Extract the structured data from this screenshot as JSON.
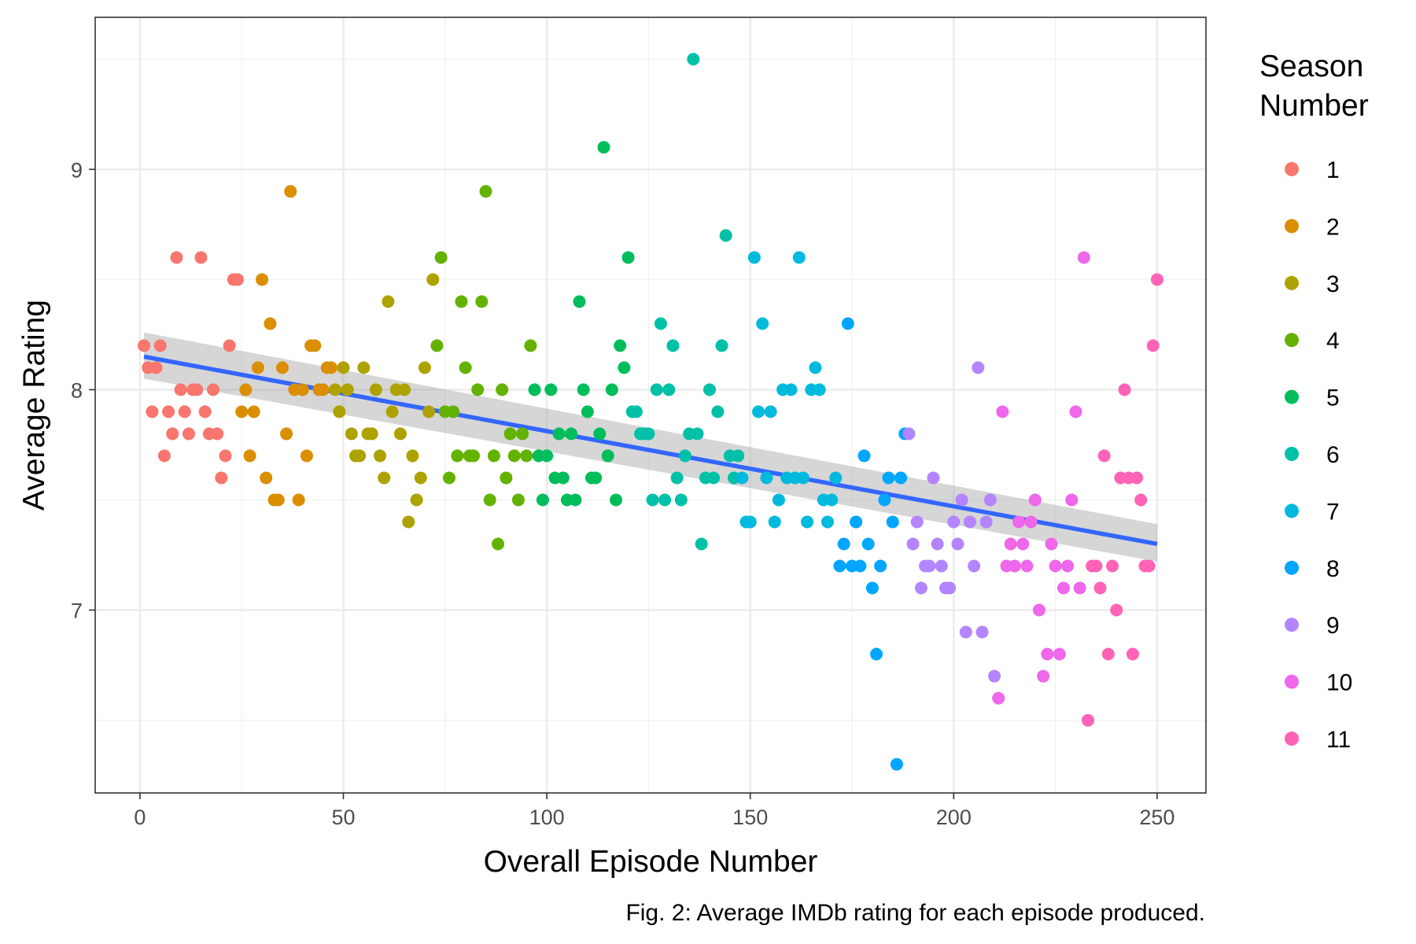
{
  "chart_data": {
    "type": "scatter",
    "xlabel": "Overall Episode Number",
    "ylabel": "Average Rating",
    "caption": "Fig. 2: Average IMDb rating for each episode produced.",
    "legend_title": [
      "Season",
      "Number"
    ],
    "legend_placement": "right",
    "grid": true,
    "xlim": [
      -11,
      262
    ],
    "ylim": [
      6.17,
      9.69
    ],
    "x_ticks": [
      0,
      50,
      100,
      150,
      200,
      250
    ],
    "y_ticks": [
      7,
      8,
      9
    ],
    "trend_line": {
      "color": "#3366ff",
      "x": [
        1,
        250
      ],
      "y": [
        8.15,
        7.3
      ],
      "ci_lower": [
        8.05,
        7.22
      ],
      "ci_upper": [
        8.26,
        7.39
      ]
    },
    "series": [
      {
        "name": "1",
        "color": "#F8766D",
        "points": [
          [
            1,
            8.2
          ],
          [
            2,
            8.1
          ],
          [
            3,
            7.9
          ],
          [
            4,
            8.1
          ],
          [
            5,
            8.2
          ],
          [
            6,
            7.7
          ],
          [
            7,
            7.9
          ],
          [
            8,
            7.8
          ],
          [
            9,
            8.6
          ],
          [
            10,
            8.0
          ],
          [
            11,
            7.9
          ],
          [
            12,
            7.8
          ],
          [
            13,
            8.0
          ],
          [
            14,
            8.0
          ],
          [
            15,
            8.6
          ],
          [
            16,
            7.9
          ],
          [
            17,
            7.8
          ],
          [
            18,
            8.0
          ],
          [
            19,
            7.8
          ],
          [
            20,
            7.6
          ],
          [
            21,
            7.7
          ],
          [
            22,
            8.2
          ],
          [
            23,
            8.5
          ],
          [
            24,
            8.5
          ]
        ]
      },
      {
        "name": "2",
        "color": "#DB8E00",
        "points": [
          [
            25,
            7.9
          ],
          [
            26,
            8.0
          ],
          [
            27,
            7.7
          ],
          [
            28,
            7.9
          ],
          [
            29,
            8.1
          ],
          [
            30,
            8.5
          ],
          [
            31,
            7.6
          ],
          [
            32,
            8.3
          ],
          [
            33,
            7.5
          ],
          [
            34,
            7.5
          ],
          [
            35,
            8.1
          ],
          [
            36,
            7.8
          ],
          [
            37,
            8.9
          ],
          [
            38,
            8.0
          ],
          [
            39,
            7.5
          ],
          [
            40,
            8.0
          ],
          [
            41,
            7.7
          ],
          [
            42,
            8.2
          ],
          [
            43,
            8.2
          ],
          [
            44,
            8.0
          ],
          [
            45,
            8.0
          ],
          [
            46,
            8.1
          ],
          [
            47,
            8.1
          ]
        ]
      },
      {
        "name": "3",
        "color": "#AEA200",
        "points": [
          [
            48,
            8.0
          ],
          [
            49,
            7.9
          ],
          [
            50,
            8.1
          ],
          [
            51,
            8.0
          ],
          [
            52,
            7.8
          ],
          [
            53,
            7.7
          ],
          [
            54,
            7.7
          ],
          [
            55,
            8.1
          ],
          [
            56,
            7.8
          ],
          [
            57,
            7.8
          ],
          [
            58,
            8.0
          ],
          [
            59,
            7.7
          ],
          [
            60,
            7.6
          ],
          [
            61,
            8.4
          ],
          [
            62,
            7.9
          ],
          [
            63,
            8.0
          ],
          [
            64,
            7.8
          ],
          [
            65,
            8.0
          ],
          [
            66,
            7.4
          ],
          [
            67,
            7.7
          ],
          [
            68,
            7.5
          ],
          [
            69,
            7.6
          ],
          [
            70,
            8.1
          ],
          [
            71,
            7.9
          ],
          [
            72,
            8.5
          ]
        ]
      },
      {
        "name": "4",
        "color": "#64B200",
        "points": [
          [
            73,
            8.2
          ],
          [
            74,
            8.6
          ],
          [
            75,
            7.9
          ],
          [
            76,
            7.6
          ],
          [
            77,
            7.9
          ],
          [
            78,
            7.7
          ],
          [
            79,
            8.4
          ],
          [
            80,
            8.1
          ],
          [
            81,
            7.7
          ],
          [
            82,
            7.7
          ],
          [
            83,
            8.0
          ],
          [
            84,
            8.4
          ],
          [
            85,
            8.9
          ],
          [
            86,
            7.5
          ],
          [
            87,
            7.7
          ],
          [
            88,
            7.3
          ],
          [
            89,
            8.0
          ],
          [
            90,
            7.6
          ],
          [
            91,
            7.8
          ],
          [
            92,
            7.7
          ],
          [
            93,
            7.5
          ],
          [
            94,
            7.8
          ],
          [
            95,
            7.7
          ],
          [
            96,
            8.2
          ]
        ]
      },
      {
        "name": "5",
        "color": "#00BD5C",
        "points": [
          [
            97,
            8.0
          ],
          [
            98,
            7.7
          ],
          [
            99,
            7.5
          ],
          [
            100,
            7.7
          ],
          [
            101,
            8.0
          ],
          [
            102,
            7.6
          ],
          [
            103,
            7.8
          ],
          [
            104,
            7.6
          ],
          [
            105,
            7.5
          ],
          [
            106,
            7.8
          ],
          [
            107,
            7.5
          ],
          [
            108,
            8.4
          ],
          [
            109,
            8.0
          ],
          [
            110,
            7.9
          ],
          [
            111,
            7.6
          ],
          [
            112,
            7.6
          ],
          [
            113,
            7.8
          ],
          [
            114,
            9.1
          ],
          [
            115,
            7.7
          ],
          [
            116,
            8.0
          ],
          [
            117,
            7.5
          ],
          [
            118,
            8.2
          ],
          [
            119,
            8.1
          ],
          [
            120,
            8.6
          ]
        ]
      },
      {
        "name": "6",
        "color": "#00C1A7",
        "points": [
          [
            121,
            7.9
          ],
          [
            122,
            7.9
          ],
          [
            123,
            7.8
          ],
          [
            124,
            7.8
          ],
          [
            125,
            7.8
          ],
          [
            126,
            7.5
          ],
          [
            127,
            8.0
          ],
          [
            128,
            8.3
          ],
          [
            129,
            7.5
          ],
          [
            130,
            8.0
          ],
          [
            131,
            8.2
          ],
          [
            132,
            7.6
          ],
          [
            133,
            7.5
          ],
          [
            134,
            7.7
          ],
          [
            135,
            7.8
          ],
          [
            136,
            9.5
          ],
          [
            137,
            7.8
          ],
          [
            138,
            7.3
          ],
          [
            139,
            7.6
          ],
          [
            140,
            8.0
          ],
          [
            141,
            7.6
          ],
          [
            142,
            7.9
          ],
          [
            143,
            8.2
          ],
          [
            144,
            8.7
          ],
          [
            145,
            7.7
          ],
          [
            146,
            7.6
          ],
          [
            147,
            7.7
          ]
        ]
      },
      {
        "name": "7",
        "color": "#00BADE",
        "points": [
          [
            148,
            7.6
          ],
          [
            149,
            7.4
          ],
          [
            150,
            7.4
          ],
          [
            151,
            8.6
          ],
          [
            152,
            7.9
          ],
          [
            153,
            8.3
          ],
          [
            154,
            7.6
          ],
          [
            155,
            7.9
          ],
          [
            156,
            7.4
          ],
          [
            157,
            7.5
          ],
          [
            158,
            8.0
          ],
          [
            159,
            7.6
          ],
          [
            160,
            8.0
          ],
          [
            161,
            7.6
          ],
          [
            162,
            8.6
          ],
          [
            163,
            7.6
          ],
          [
            164,
            7.4
          ],
          [
            165,
            8.0
          ],
          [
            166,
            8.1
          ],
          [
            167,
            8.0
          ],
          [
            168,
            7.5
          ],
          [
            169,
            7.4
          ],
          [
            170,
            7.5
          ],
          [
            171,
            7.6
          ]
        ]
      },
      {
        "name": "8",
        "color": "#00A6FF",
        "points": [
          [
            172,
            7.2
          ],
          [
            173,
            7.3
          ],
          [
            174,
            8.3
          ],
          [
            175,
            7.2
          ],
          [
            176,
            7.4
          ],
          [
            177,
            7.2
          ],
          [
            178,
            7.7
          ],
          [
            179,
            7.3
          ],
          [
            180,
            7.1
          ],
          [
            181,
            6.8
          ],
          [
            182,
            7.2
          ],
          [
            183,
            7.5
          ],
          [
            184,
            7.6
          ],
          [
            185,
            7.4
          ],
          [
            186,
            6.3
          ],
          [
            187,
            7.6
          ],
          [
            188,
            7.8
          ]
        ]
      },
      {
        "name": "9",
        "color": "#B385FF",
        "points": [
          [
            189,
            7.8
          ],
          [
            190,
            7.3
          ],
          [
            191,
            7.4
          ],
          [
            192,
            7.1
          ],
          [
            193,
            7.2
          ],
          [
            194,
            7.2
          ],
          [
            195,
            7.6
          ],
          [
            196,
            7.3
          ],
          [
            197,
            7.2
          ],
          [
            198,
            7.1
          ],
          [
            199,
            7.1
          ],
          [
            200,
            7.4
          ],
          [
            201,
            7.3
          ],
          [
            202,
            7.5
          ],
          [
            203,
            6.9
          ],
          [
            204,
            7.4
          ],
          [
            205,
            7.2
          ],
          [
            206,
            8.1
          ],
          [
            207,
            6.9
          ],
          [
            208,
            7.4
          ],
          [
            209,
            7.5
          ],
          [
            210,
            6.7
          ]
        ]
      },
      {
        "name": "10",
        "color": "#EF67EB",
        "points": [
          [
            211,
            6.6
          ],
          [
            212,
            7.9
          ],
          [
            213,
            7.2
          ],
          [
            214,
            7.3
          ],
          [
            215,
            7.2
          ],
          [
            216,
            7.4
          ],
          [
            217,
            7.3
          ],
          [
            218,
            7.2
          ],
          [
            219,
            7.4
          ],
          [
            220,
            7.5
          ],
          [
            221,
            7.0
          ],
          [
            222,
            6.7
          ],
          [
            223,
            6.8
          ],
          [
            224,
            7.3
          ],
          [
            225,
            7.2
          ],
          [
            226,
            6.8
          ],
          [
            227,
            7.1
          ],
          [
            228,
            7.2
          ],
          [
            229,
            7.5
          ],
          [
            230,
            7.9
          ],
          [
            231,
            7.1
          ],
          [
            232,
            8.6
          ]
        ]
      },
      {
        "name": "11",
        "color": "#FF63B6",
        "points": [
          [
            233,
            6.5
          ],
          [
            234,
            7.2
          ],
          [
            235,
            7.2
          ],
          [
            236,
            7.1
          ],
          [
            237,
            7.7
          ],
          [
            238,
            6.8
          ],
          [
            239,
            7.2
          ],
          [
            240,
            7.0
          ],
          [
            241,
            7.6
          ],
          [
            242,
            8.0
          ],
          [
            243,
            7.6
          ],
          [
            244,
            6.8
          ],
          [
            245,
            7.6
          ],
          [
            246,
            7.5
          ],
          [
            247,
            7.2
          ],
          [
            248,
            7.2
          ],
          [
            249,
            8.2
          ],
          [
            250,
            8.5
          ]
        ]
      }
    ]
  }
}
